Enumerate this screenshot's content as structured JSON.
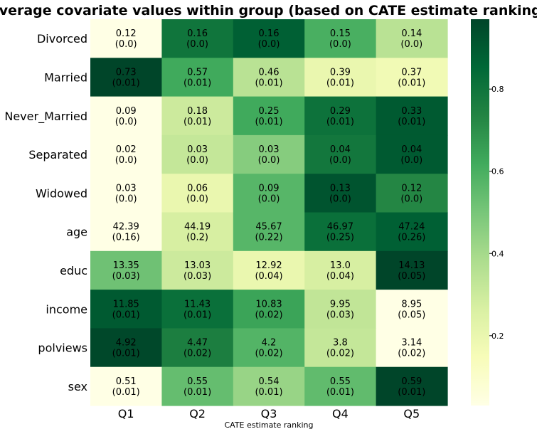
{
  "chart_data": {
    "type": "heatmap",
    "title": "Average covariate values within group (based on CATE estimate ranking)",
    "xlabel": "CATE estimate ranking",
    "ylabel": "",
    "columns": [
      "Q1",
      "Q2",
      "Q3",
      "Q4",
      "Q5"
    ],
    "rows": [
      "Divorced",
      "Married",
      "Never_Married",
      "Separated",
      "Widowed",
      "age",
      "educ",
      "income",
      "polviews",
      "sex"
    ],
    "cells": [
      [
        {
          "mean": "0.12",
          "se": "(0.0)"
        },
        {
          "mean": "0.16",
          "se": "(0.0)"
        },
        {
          "mean": "0.16",
          "se": "(0.0)"
        },
        {
          "mean": "0.15",
          "se": "(0.0)"
        },
        {
          "mean": "0.14",
          "se": "(0.0)"
        }
      ],
      [
        {
          "mean": "0.73",
          "se": "(0.01)"
        },
        {
          "mean": "0.57",
          "se": "(0.01)"
        },
        {
          "mean": "0.46",
          "se": "(0.01)"
        },
        {
          "mean": "0.39",
          "se": "(0.01)"
        },
        {
          "mean": "0.37",
          "se": "(0.01)"
        }
      ],
      [
        {
          "mean": "0.09",
          "se": "(0.0)"
        },
        {
          "mean": "0.18",
          "se": "(0.01)"
        },
        {
          "mean": "0.25",
          "se": "(0.01)"
        },
        {
          "mean": "0.29",
          "se": "(0.01)"
        },
        {
          "mean": "0.33",
          "se": "(0.01)"
        }
      ],
      [
        {
          "mean": "0.02",
          "se": "(0.0)"
        },
        {
          "mean": "0.03",
          "se": "(0.0)"
        },
        {
          "mean": "0.03",
          "se": "(0.0)"
        },
        {
          "mean": "0.04",
          "se": "(0.0)"
        },
        {
          "mean": "0.04",
          "se": "(0.0)"
        }
      ],
      [
        {
          "mean": "0.03",
          "se": "(0.0)"
        },
        {
          "mean": "0.06",
          "se": "(0.0)"
        },
        {
          "mean": "0.09",
          "se": "(0.0)"
        },
        {
          "mean": "0.13",
          "se": "(0.0)"
        },
        {
          "mean": "0.12",
          "se": "(0.0)"
        }
      ],
      [
        {
          "mean": "42.39",
          "se": "(0.16)"
        },
        {
          "mean": "44.19",
          "se": "(0.2)"
        },
        {
          "mean": "45.67",
          "se": "(0.22)"
        },
        {
          "mean": "46.97",
          "se": "(0.25)"
        },
        {
          "mean": "47.24",
          "se": "(0.26)"
        }
      ],
      [
        {
          "mean": "13.35",
          "se": "(0.03)"
        },
        {
          "mean": "13.03",
          "se": "(0.03)"
        },
        {
          "mean": "12.92",
          "se": "(0.04)"
        },
        {
          "mean": "13.0",
          "se": "(0.04)"
        },
        {
          "mean": "14.13",
          "se": "(0.05)"
        }
      ],
      [
        {
          "mean": "11.85",
          "se": "(0.01)"
        },
        {
          "mean": "11.43",
          "se": "(0.01)"
        },
        {
          "mean": "10.83",
          "se": "(0.02)"
        },
        {
          "mean": "9.95",
          "se": "(0.03)"
        },
        {
          "mean": "8.95",
          "se": "(0.05)"
        }
      ],
      [
        {
          "mean": "4.92",
          "se": "(0.01)"
        },
        {
          "mean": "4.47",
          "se": "(0.02)"
        },
        {
          "mean": "4.2",
          "se": "(0.02)"
        },
        {
          "mean": "3.8",
          "se": "(0.02)"
        },
        {
          "mean": "3.14",
          "se": "(0.02)"
        }
      ],
      [
        {
          "mean": "0.51",
          "se": "(0.01)"
        },
        {
          "mean": "0.55",
          "se": "(0.01)"
        },
        {
          "mean": "0.54",
          "se": "(0.01)"
        },
        {
          "mean": "0.55",
          "se": "(0.01)"
        },
        {
          "mean": "0.59",
          "se": "(0.01)"
        }
      ]
    ],
    "color_scale": {
      "name": "YlGn",
      "min": 0.03,
      "max": 0.97,
      "ticks": [
        "0.2",
        "0.4",
        "0.6",
        "0.8"
      ],
      "tick_values": [
        0.2,
        0.4,
        0.6,
        0.8
      ],
      "stops": [
        "#ffffe5",
        "#f7fcb9",
        "#d9f0a3",
        "#addd8e",
        "#78c679",
        "#41ab5d",
        "#238443",
        "#006837",
        "#004529"
      ]
    },
    "cell_color_values": [
      [
        0.03,
        0.8,
        0.88,
        0.6,
        0.35
      ],
      [
        0.97,
        0.62,
        0.35,
        0.2,
        0.17
      ],
      [
        0.03,
        0.3,
        0.62,
        0.81,
        0.9
      ],
      [
        0.03,
        0.32,
        0.47,
        0.79,
        0.9
      ],
      [
        0.03,
        0.2,
        0.57,
        0.92,
        0.73
      ],
      [
        0.03,
        0.27,
        0.57,
        0.82,
        0.88
      ],
      [
        0.52,
        0.3,
        0.2,
        0.27,
        0.97
      ],
      [
        0.9,
        0.82,
        0.64,
        0.33,
        0.03
      ],
      [
        0.96,
        0.76,
        0.58,
        0.32,
        0.03
      ],
      [
        0.03,
        0.54,
        0.43,
        0.55,
        0.97
      ]
    ],
    "grid": false,
    "legend": "colorbar-right"
  }
}
